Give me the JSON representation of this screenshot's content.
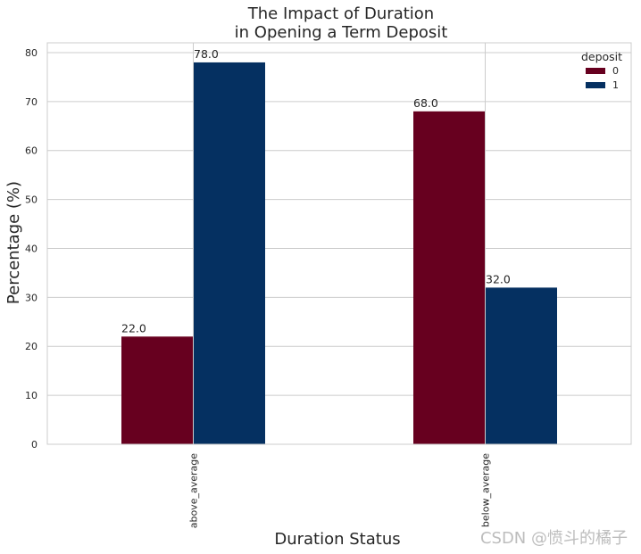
{
  "chart_data": {
    "type": "bar",
    "title_lines": [
      "The Impact of Duration",
      "in Opening a Term Deposit"
    ],
    "xlabel": "Duration Status",
    "ylabel": "Percentage (%)",
    "categories": [
      "above_average",
      "below_average"
    ],
    "series": [
      {
        "name": "0",
        "values": [
          22.0,
          68.0
        ],
        "color": "#67001f"
      },
      {
        "name": "1",
        "values": [
          78.0,
          32.0
        ],
        "color": "#053061"
      }
    ],
    "value_labels": [
      [
        "22.0",
        "68.0"
      ],
      [
        "78.0",
        "32.0"
      ]
    ],
    "ylim": [
      0,
      82
    ],
    "yticks": [
      0,
      10,
      20,
      30,
      40,
      50,
      60,
      70,
      80
    ],
    "grid": true,
    "legend": {
      "title": "deposit",
      "position": "top-right"
    }
  },
  "watermark": "CSDN @愤斗的橘子"
}
